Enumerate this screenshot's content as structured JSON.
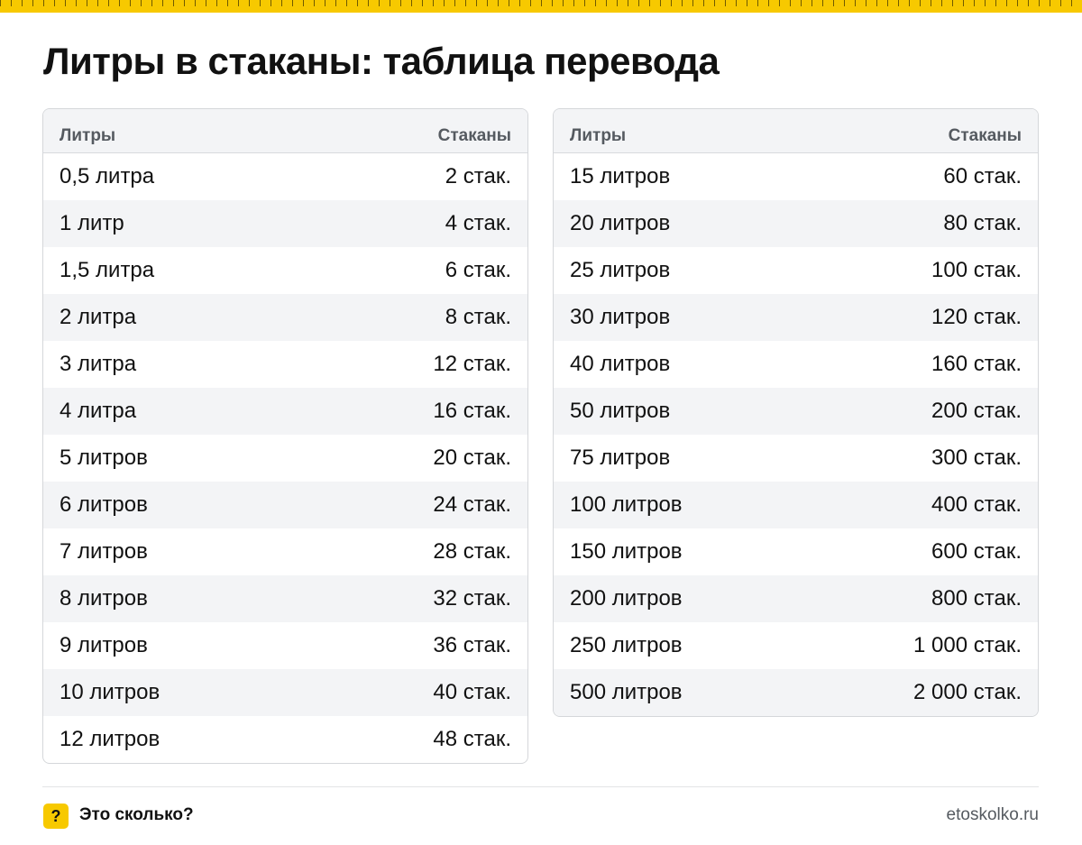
{
  "title": "Литры в стаканы: таблица перевода",
  "colors": {
    "accent": "#f7c900",
    "header_bg": "#f3f4f6",
    "stripe_bg": "#f3f4f6"
  },
  "tables": [
    {
      "headers": [
        "Литры",
        "Стаканы"
      ],
      "rows": [
        [
          "0,5 литра",
          "2 стак."
        ],
        [
          "1 литр",
          "4 стак."
        ],
        [
          "1,5 литра",
          "6 стак."
        ],
        [
          "2 литра",
          "8 стак."
        ],
        [
          "3 литра",
          "12 стак."
        ],
        [
          "4 литра",
          "16 стак."
        ],
        [
          "5 литров",
          "20 стак."
        ],
        [
          "6 литров",
          "24 стак."
        ],
        [
          "7 литров",
          "28 стак."
        ],
        [
          "8 литров",
          "32 стак."
        ],
        [
          "9 литров",
          "36 стак."
        ],
        [
          "10 литров",
          "40 стак."
        ],
        [
          "12 литров",
          "48 стак."
        ]
      ]
    },
    {
      "headers": [
        "Литры",
        "Стаканы"
      ],
      "rows": [
        [
          "15 литров",
          "60 стак."
        ],
        [
          "20 литров",
          "80 стак."
        ],
        [
          "25 литров",
          "100 стак."
        ],
        [
          "30 литров",
          "120 стак."
        ],
        [
          "40 литров",
          "160 стак."
        ],
        [
          "50 литров",
          "200 стак."
        ],
        [
          "75 литров",
          "300 стак."
        ],
        [
          "100 литров",
          "400 стак."
        ],
        [
          "150 литров",
          "600 стак."
        ],
        [
          "200 литров",
          "800 стак."
        ],
        [
          "250 литров",
          "1 000 стак."
        ],
        [
          "500 литров",
          "2 000 стак."
        ]
      ]
    }
  ],
  "footer": {
    "badge_icon": "question-mark-icon",
    "badge_symbol": "?",
    "brand": "Это сколько?",
    "site": "etoskolko.ru"
  }
}
